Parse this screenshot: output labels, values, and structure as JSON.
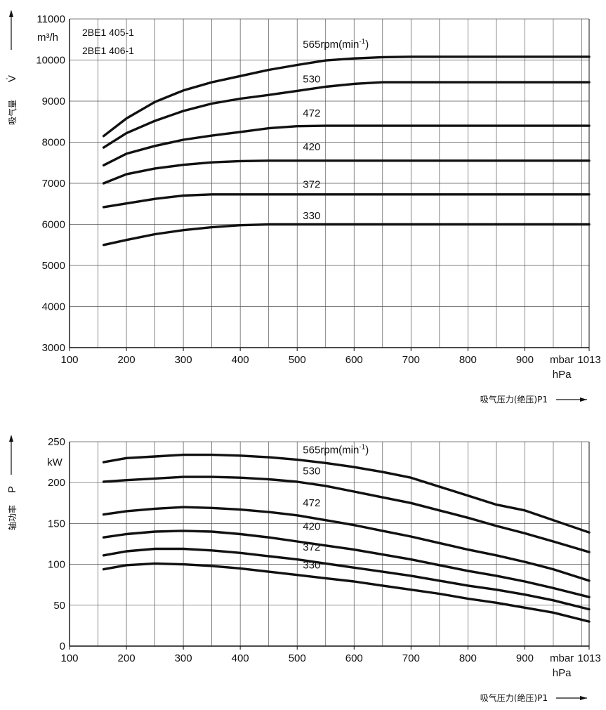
{
  "chart_data": [
    {
      "type": "line",
      "models": [
        "2BE1  405-1",
        "2BE1  406-1"
      ],
      "ylabel": "吸气量",
      "ylabel_symbol": "V̇",
      "yunit": "m³/h",
      "xlabel": "吸气压力(绝压)P1",
      "xunit_top": "mbar",
      "xunit_bottom": "hPa",
      "xlim": [
        100,
        1013
      ],
      "ylim": [
        3000,
        11000
      ],
      "x_ticks": [
        "100",
        "200",
        "300",
        "400",
        "500",
        "600",
        "700",
        "800",
        "900",
        "1013"
      ],
      "y_ticks": [
        "3000",
        "4000",
        "5000",
        "6000",
        "7000",
        "8000",
        "9000",
        "10000",
        "11000"
      ],
      "grid": true,
      "series": [
        {
          "name": "565rpm(min-1)",
          "label": "565rpm(min",
          "x": [
            160,
            200,
            250,
            300,
            350,
            400,
            450,
            500,
            550,
            600,
            650,
            700,
            1013
          ],
          "y": [
            8150,
            8580,
            8980,
            9260,
            9460,
            9610,
            9760,
            9880,
            9990,
            10040,
            10070,
            10080,
            10080
          ]
        },
        {
          "name": "530",
          "label": "530",
          "x": [
            160,
            200,
            250,
            300,
            350,
            400,
            450,
            500,
            550,
            600,
            650,
            700,
            1013
          ],
          "y": [
            7870,
            8220,
            8520,
            8760,
            8940,
            9060,
            9150,
            9250,
            9350,
            9420,
            9460,
            9460,
            9460
          ]
        },
        {
          "name": "472",
          "label": "472",
          "x": [
            160,
            200,
            250,
            300,
            350,
            400,
            450,
            500,
            550,
            600,
            1013
          ],
          "y": [
            7440,
            7720,
            7910,
            8060,
            8160,
            8250,
            8340,
            8390,
            8400,
            8400,
            8400
          ]
        },
        {
          "name": "420",
          "label": "420",
          "x": [
            160,
            200,
            250,
            300,
            350,
            400,
            450,
            1013
          ],
          "y": [
            7000,
            7220,
            7360,
            7450,
            7510,
            7540,
            7550,
            7550
          ]
        },
        {
          "name": "372",
          "label": "372",
          "x": [
            160,
            200,
            250,
            300,
            350,
            400,
            1013
          ],
          "y": [
            6420,
            6510,
            6620,
            6700,
            6730,
            6730,
            6730
          ]
        },
        {
          "name": "330",
          "label": "330",
          "x": [
            160,
            200,
            250,
            300,
            350,
            400,
            450,
            500,
            1013
          ],
          "y": [
            5500,
            5620,
            5760,
            5860,
            5930,
            5980,
            6000,
            6000,
            6000
          ]
        }
      ]
    },
    {
      "type": "line",
      "ylabel": "轴功率",
      "ylabel_symbol": "P",
      "yunit": "kW",
      "xlabel": "吸气压力(绝压)P1",
      "xunit_top": "mbar",
      "xunit_bottom": "hPa",
      "xlim": [
        100,
        1013
      ],
      "ylim": [
        0,
        250
      ],
      "x_ticks": [
        "100",
        "200",
        "300",
        "400",
        "500",
        "600",
        "700",
        "800",
        "900",
        "1013"
      ],
      "y_ticks": [
        "0",
        "50",
        "100",
        "150",
        "200",
        "250"
      ],
      "grid": true,
      "series": [
        {
          "name": "565rpm(min-1)",
          "label": "565rpm(min",
          "x": [
            160,
            200,
            250,
            300,
            350,
            400,
            450,
            500,
            550,
            600,
            650,
            700,
            750,
            800,
            850,
            900,
            950,
            1013
          ],
          "y": [
            225,
            230,
            232,
            234,
            234,
            233,
            231,
            228,
            224,
            219,
            213,
            206,
            195,
            184,
            173,
            166,
            154,
            139
          ]
        },
        {
          "name": "530",
          "label": "530",
          "x": [
            160,
            200,
            250,
            300,
            350,
            400,
            450,
            500,
            550,
            600,
            650,
            700,
            750,
            800,
            850,
            900,
            950,
            1013
          ],
          "y": [
            201,
            203,
            205,
            207,
            207,
            206,
            204,
            201,
            196,
            189,
            182,
            175,
            166,
            157,
            147,
            138,
            128,
            115
          ]
        },
        {
          "name": "472",
          "label": "472",
          "x": [
            160,
            200,
            250,
            300,
            350,
            400,
            450,
            500,
            550,
            600,
            650,
            700,
            750,
            800,
            850,
            900,
            950,
            1013
          ],
          "y": [
            161,
            165,
            168,
            170,
            169,
            167,
            164,
            160,
            154,
            148,
            141,
            134,
            126,
            118,
            111,
            103,
            94,
            80
          ]
        },
        {
          "name": "420",
          "label": "420",
          "x": [
            160,
            200,
            250,
            300,
            350,
            400,
            450,
            500,
            550,
            600,
            650,
            700,
            750,
            800,
            850,
            900,
            950,
            1013
          ],
          "y": [
            133,
            137,
            140,
            141,
            140,
            137,
            133,
            128,
            123,
            118,
            112,
            106,
            99,
            92,
            86,
            79,
            71,
            60
          ]
        },
        {
          "name": "372",
          "label": "372",
          "x": [
            160,
            200,
            250,
            300,
            350,
            400,
            450,
            500,
            550,
            600,
            650,
            700,
            750,
            800,
            850,
            900,
            950,
            1013
          ],
          "y": [
            111,
            116,
            119,
            119,
            117,
            114,
            110,
            106,
            101,
            96,
            91,
            86,
            80,
            74,
            69,
            63,
            56,
            45
          ]
        },
        {
          "name": "330",
          "label": "330",
          "x": [
            160,
            200,
            250,
            300,
            350,
            400,
            450,
            500,
            550,
            600,
            650,
            700,
            750,
            800,
            850,
            900,
            950,
            1013
          ],
          "y": [
            94,
            99,
            101,
            100,
            98,
            95,
            91,
            87,
            83,
            79,
            74,
            69,
            64,
            58,
            53,
            47,
            41,
            30
          ]
        }
      ]
    }
  ]
}
